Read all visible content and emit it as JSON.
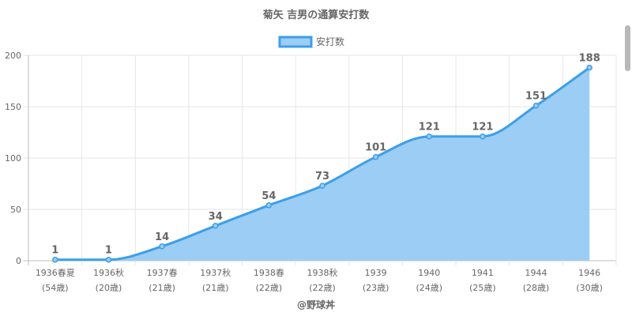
{
  "chart_data": {
    "type": "area",
    "title": "菊矢 吉男の通算安打数",
    "legend": {
      "label": "安打数",
      "position": "top"
    },
    "categories": [
      [
        "1936春夏",
        "(54歳)"
      ],
      [
        "1936秋",
        "(20歳)"
      ],
      [
        "1937春",
        "(21歳)"
      ],
      [
        "1937秋",
        "(21歳)"
      ],
      [
        "1938春",
        "(22歳)"
      ],
      [
        "1938秋",
        "(22歳)"
      ],
      [
        "1939",
        "(23歳)"
      ],
      [
        "1940",
        "(24歳)"
      ],
      [
        "1941",
        "(25歳)"
      ],
      [
        "1944",
        "(28歳)"
      ],
      [
        "1946",
        "(30歳)"
      ]
    ],
    "series": [
      {
        "name": "安打数",
        "values": [
          1,
          1,
          14,
          34,
          54,
          73,
          101,
          121,
          121,
          151,
          188
        ]
      }
    ],
    "ylim": [
      0,
      200
    ],
    "yticks": [
      0,
      50,
      100,
      150,
      200
    ],
    "grid": true,
    "colors": {
      "fill": "#9ccdf5",
      "line": "#3c9fe8",
      "grid": "#e6e6e6",
      "text": "#666666"
    }
  },
  "credit": "@野球丼"
}
